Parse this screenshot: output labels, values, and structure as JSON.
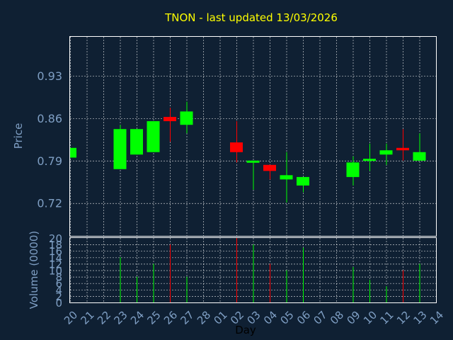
{
  "chart_data": [
    {
      "type": "candlestick",
      "title": "TNON - last updated 13/03/2026",
      "ylabel": "Price",
      "ylim": [
        0.666,
        0.994
      ],
      "y_ticks": [
        "0.72",
        "0.79",
        "0.86",
        "0.93"
      ],
      "grid": true,
      "colors": {
        "up": "#00ff00",
        "down": "#ff0000"
      },
      "days": [
        {
          "day": "20",
          "open": 0.795,
          "close": 0.811,
          "high": 0.811,
          "low": 0.795,
          "volume": 0
        },
        {
          "day": "21",
          "open": null,
          "close": null,
          "high": null,
          "low": null,
          "volume": 0
        },
        {
          "day": "22",
          "open": null,
          "close": null,
          "high": null,
          "low": null,
          "volume": 0
        },
        {
          "day": "23",
          "open": 0.776,
          "close": 0.842,
          "high": 0.849,
          "low": 0.776,
          "volume": 14
        },
        {
          "day": "24",
          "open": 0.8,
          "close": 0.842,
          "high": 0.842,
          "low": 0.8,
          "volume": 8
        },
        {
          "day": "25",
          "open": 0.804,
          "close": 0.855,
          "high": 0.855,
          "low": 0.804,
          "volume": 12
        },
        {
          "day": "26",
          "open": 0.862,
          "close": 0.855,
          "high": 0.877,
          "low": 0.821,
          "volume": 18
        },
        {
          "day": "27",
          "open": 0.849,
          "close": 0.871,
          "high": 0.887,
          "low": 0.835,
          "volume": 8
        },
        {
          "day": "28",
          "open": null,
          "close": null,
          "high": null,
          "low": null,
          "volume": 0
        },
        {
          "day": "01",
          "open": null,
          "close": null,
          "high": null,
          "low": null,
          "volume": 0
        },
        {
          "day": "02",
          "open": 0.82,
          "close": 0.804,
          "high": 0.855,
          "low": 0.787,
          "volume": 20
        },
        {
          "day": "03",
          "open": 0.787,
          "close": 0.79,
          "high": 0.79,
          "low": 0.742,
          "volume": 18
        },
        {
          "day": "04",
          "open": 0.783,
          "close": 0.773,
          "high": 0.783,
          "low": 0.759,
          "volume": 12
        },
        {
          "day": "05",
          "open": 0.759,
          "close": 0.766,
          "high": 0.804,
          "low": 0.721,
          "volume": 10
        },
        {
          "day": "06",
          "open": 0.749,
          "close": 0.763,
          "high": 0.763,
          "low": 0.738,
          "volume": 17
        },
        {
          "day": "07",
          "open": null,
          "close": null,
          "high": null,
          "low": null,
          "volume": 0
        },
        {
          "day": "08",
          "open": null,
          "close": null,
          "high": null,
          "low": null,
          "volume": 0
        },
        {
          "day": "09",
          "open": 0.763,
          "close": 0.787,
          "high": 0.797,
          "low": 0.749,
          "volume": 11
        },
        {
          "day": "10",
          "open": 0.79,
          "close": 0.793,
          "high": 0.818,
          "low": 0.773,
          "volume": 7
        },
        {
          "day": "11",
          "open": 0.8,
          "close": 0.807,
          "high": 0.818,
          "low": 0.783,
          "volume": 5
        },
        {
          "day": "12",
          "open": 0.811,
          "close": 0.807,
          "high": 0.842,
          "low": 0.79,
          "volume": 10
        },
        {
          "day": "13",
          "open": 0.79,
          "close": 0.804,
          "high": 0.835,
          "low": 0.79,
          "volume": 12
        },
        {
          "day": "14",
          "open": null,
          "close": null,
          "high": null,
          "low": null,
          "volume": 0
        }
      ]
    },
    {
      "type": "bar",
      "ylabel": "Volume (0000)",
      "xlabel": "Day",
      "ylim": [
        0,
        20
      ],
      "y_ticks": [
        "0",
        "2",
        "4",
        "6",
        "8",
        "10",
        "12",
        "14",
        "16",
        "18",
        "20"
      ],
      "grid": true
    }
  ]
}
